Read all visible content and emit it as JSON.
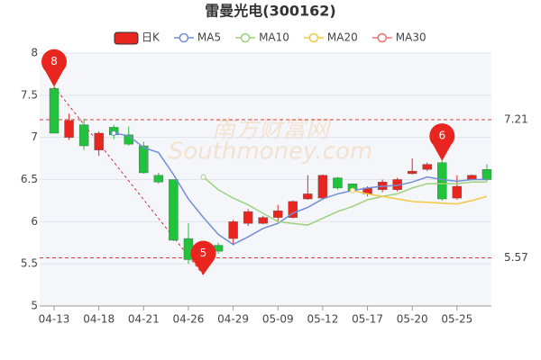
{
  "chart_data": {
    "type": "candlestick",
    "title": "雷曼光电(300162)",
    "categories": [
      "04-13",
      null,
      null,
      "04-18",
      null,
      null,
      "04-21",
      null,
      null,
      "04-26",
      null,
      null,
      "04-29",
      null,
      null,
      "05-09",
      null,
      null,
      "05-12",
      null,
      null,
      "05-17",
      null,
      null,
      "05-20",
      null,
      null,
      "05-25",
      null,
      null
    ],
    "series": [
      {
        "name": "日K",
        "color": "#e8261f",
        "down_color": "#22c33c",
        "open": [
          7.58,
          7.0,
          7.15,
          6.85,
          7.12,
          7.03,
          6.9,
          6.55,
          6.5,
          5.8,
          5.72,
          5.72,
          5.8,
          5.98,
          5.98,
          6.05,
          6.05,
          6.27,
          6.28,
          6.52,
          6.45,
          6.33,
          6.38,
          6.38,
          6.57,
          6.62,
          6.7,
          6.28,
          6.5,
          6.62
        ],
        "close": [
          7.05,
          7.2,
          6.9,
          7.05,
          7.03,
          6.92,
          6.58,
          6.47,
          5.78,
          5.55,
          5.5,
          5.65,
          6.0,
          6.12,
          6.05,
          6.13,
          6.24,
          6.33,
          6.55,
          6.4,
          6.37,
          6.4,
          6.47,
          6.5,
          6.6,
          6.68,
          6.27,
          6.42,
          6.55,
          6.5
        ],
        "high": [
          7.6,
          7.28,
          7.22,
          7.07,
          7.15,
          7.13,
          6.95,
          6.58,
          6.5,
          5.98,
          5.75,
          5.75,
          6.02,
          6.15,
          6.07,
          6.2,
          6.25,
          6.55,
          6.56,
          6.53,
          6.45,
          6.42,
          6.5,
          6.52,
          6.75,
          6.7,
          6.72,
          6.55,
          6.56,
          6.68
        ],
        "low": [
          7.05,
          6.97,
          6.85,
          6.78,
          6.98,
          6.9,
          6.57,
          6.45,
          5.77,
          5.5,
          5.37,
          5.62,
          5.72,
          5.95,
          5.97,
          6.0,
          6.04,
          6.26,
          6.27,
          6.38,
          6.35,
          6.3,
          6.35,
          6.36,
          6.56,
          6.6,
          6.25,
          6.26,
          6.5,
          6.48
        ]
      },
      {
        "name": "MA5",
        "color": "#6f8fd4",
        "values": [
          null,
          null,
          null,
          null,
          7.05,
          7.02,
          6.88,
          6.82,
          6.56,
          6.27,
          6.05,
          5.85,
          5.73,
          5.82,
          5.92,
          5.98,
          6.1,
          6.17,
          6.27,
          6.33,
          6.37,
          6.4,
          6.42,
          6.43,
          6.47,
          6.53,
          6.5,
          6.48,
          6.5,
          6.5
        ]
      },
      {
        "name": "MA10",
        "color": "#9ed17b",
        "values": [
          null,
          null,
          null,
          null,
          null,
          null,
          null,
          null,
          null,
          null,
          6.53,
          6.38,
          6.28,
          6.2,
          6.1,
          6.0,
          5.98,
          5.96,
          6.04,
          6.12,
          6.18,
          6.26,
          6.3,
          6.33,
          6.4,
          6.45,
          6.45,
          6.45,
          6.47,
          6.47
        ]
      },
      {
        "name": "MA20",
        "color": "#f5c842",
        "values": [
          null,
          null,
          null,
          null,
          null,
          null,
          null,
          null,
          null,
          null,
          null,
          null,
          null,
          null,
          null,
          null,
          null,
          null,
          null,
          null,
          6.37,
          6.33,
          6.3,
          6.27,
          6.24,
          6.23,
          6.22,
          6.21,
          6.25,
          6.3
        ]
      },
      {
        "name": "MA30",
        "color": "#f07070",
        "values": [
          null,
          null,
          null,
          null,
          null,
          null,
          null,
          null,
          null,
          null,
          null,
          null,
          null,
          null,
          null,
          null,
          null,
          null,
          null,
          null,
          null,
          null,
          null,
          null,
          null,
          null,
          null,
          null,
          null,
          null
        ]
      }
    ],
    "ylim": [
      5,
      8
    ],
    "yticks": [
      5,
      5.5,
      6,
      6.5,
      7,
      7.5,
      8
    ],
    "grid": true,
    "hlines": [
      7.21,
      5.57
    ],
    "markers": [
      {
        "label": "8",
        "at": 0
      },
      {
        "label": "5",
        "at": 10
      },
      {
        "label": "6",
        "at": 26
      }
    ],
    "watermark": [
      "南方财富网",
      "Southmoney.com"
    ]
  }
}
